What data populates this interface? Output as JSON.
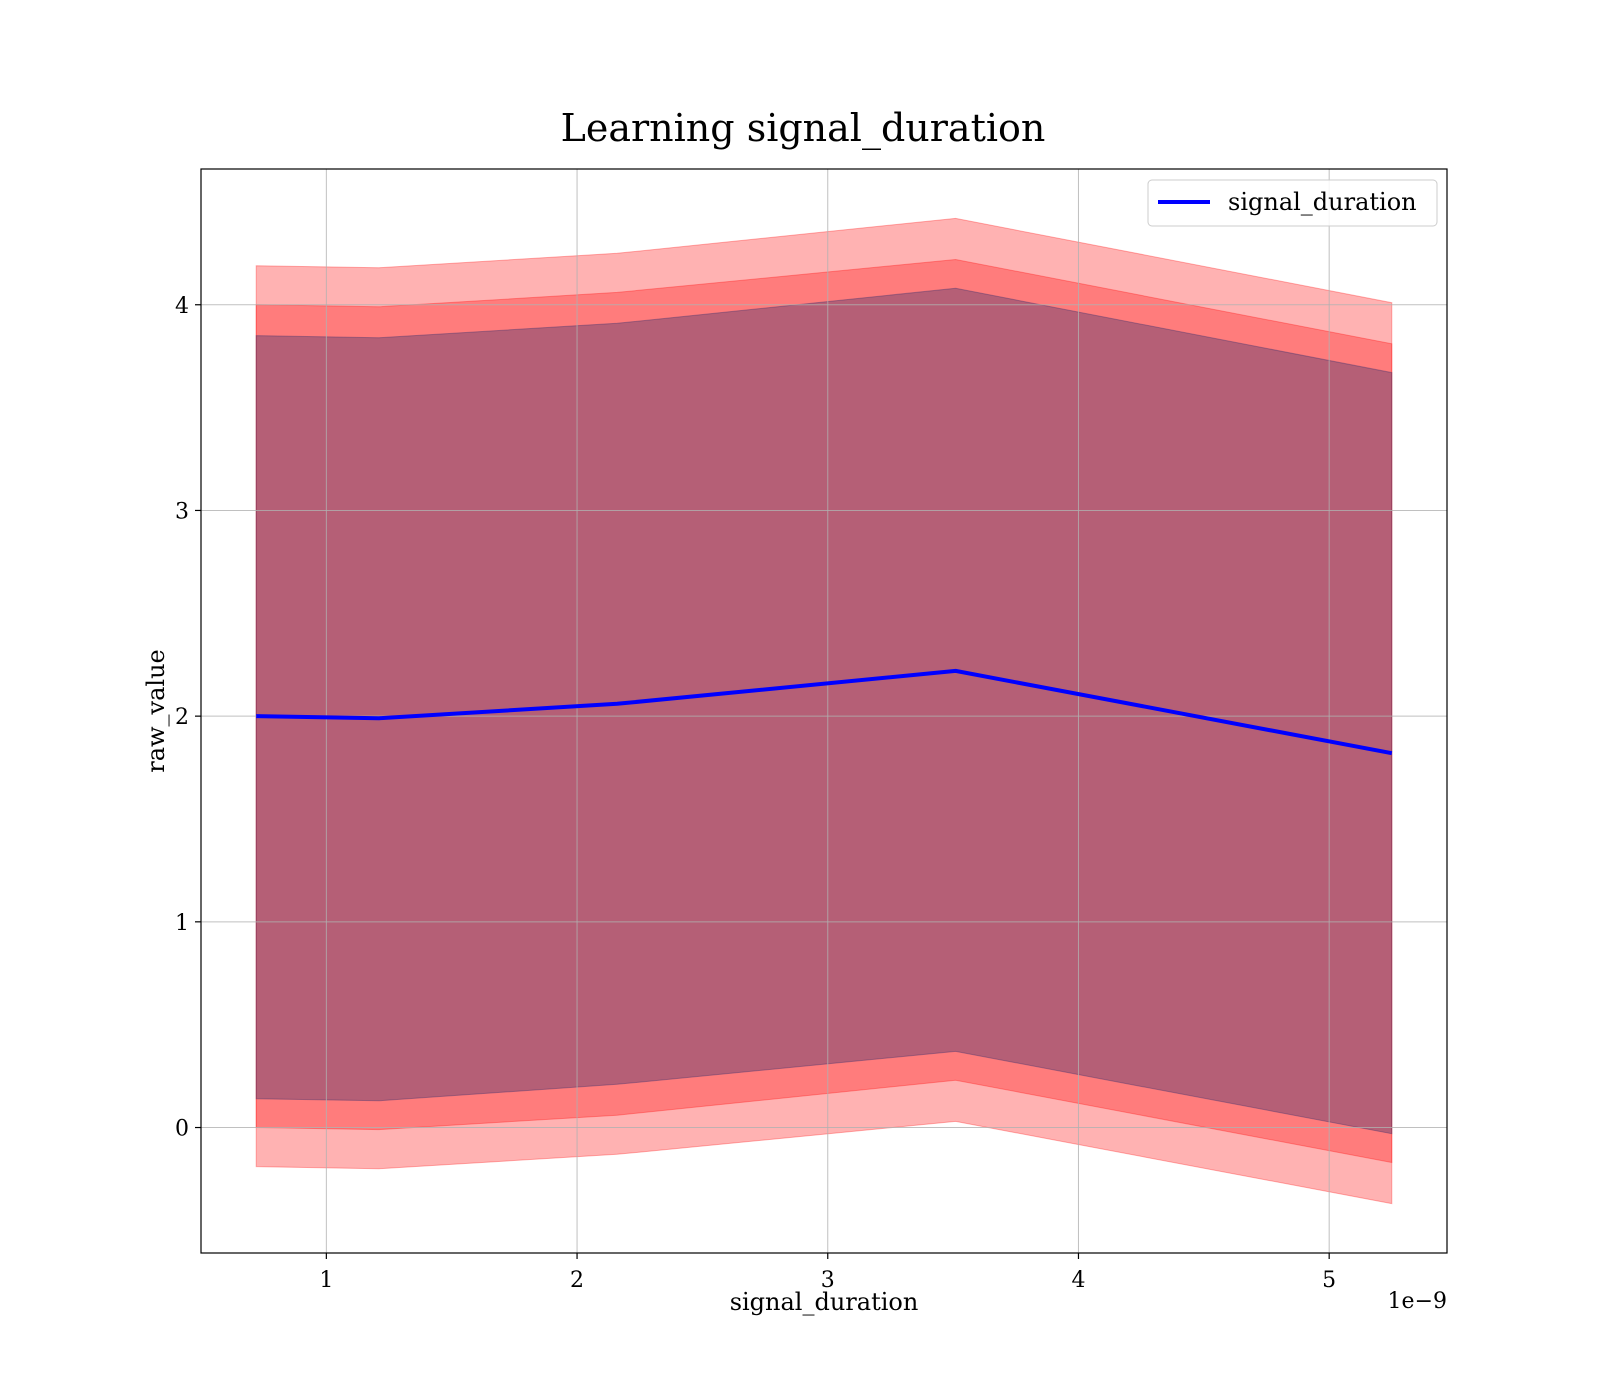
{
  "chart_data": {
    "type": "line",
    "title": "Learning signal_duration",
    "xlabel": "signal_duration",
    "ylabel": "raw_value",
    "x_offset_label": "1e−9",
    "x_tick_values": [
      1,
      2,
      3,
      4,
      5
    ],
    "x_tick_labels": [
      "1",
      "2",
      "3",
      "4",
      "5"
    ],
    "y_tick_values": [
      0,
      1,
      2,
      3,
      4
    ],
    "y_tick_labels": [
      "0",
      "1",
      "2",
      "3",
      "4"
    ],
    "xlim": [
      5e-10,
      5.47e-09
    ],
    "ylim": [
      -0.61,
      4.66
    ],
    "grid": true,
    "legend_position": "top-right",
    "x": [
      7.2e-10,
      1.21e-09,
      2.16e-09,
      3.51e-09,
      5.25e-09
    ],
    "series": [
      {
        "name": "signal_duration",
        "color": "#0000ff",
        "values": [
          2.0,
          1.99,
          2.06,
          2.22,
          1.82
        ]
      }
    ],
    "bands": [
      {
        "color": "#ff0000",
        "opacity": 0.3,
        "lower": [
          -0.19,
          -0.2,
          -0.13,
          0.03,
          -0.37
        ],
        "upper": [
          4.19,
          4.18,
          4.25,
          4.42,
          4.01
        ]
      },
      {
        "color": "#ff0000",
        "opacity": 0.3,
        "lower": [
          0.0,
          -0.01,
          0.06,
          0.23,
          -0.17
        ],
        "upper": [
          4.0,
          3.99,
          4.06,
          4.22,
          3.81
        ]
      },
      {
        "color": "#2a2a6e",
        "opacity": 0.35,
        "lower": [
          0.14,
          0.13,
          0.21,
          0.37,
          -0.03
        ],
        "upper": [
          3.85,
          3.84,
          3.91,
          4.08,
          3.67
        ]
      }
    ]
  }
}
